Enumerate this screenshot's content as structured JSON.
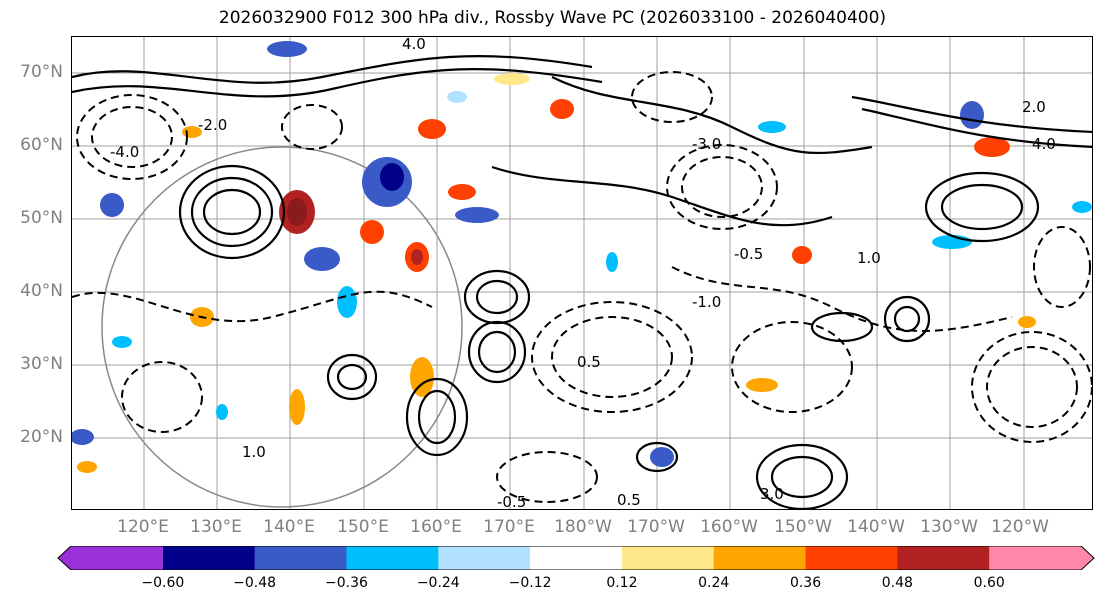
{
  "title": "2026032900 F012 300 hPa div., Rossby Wave PC (2026033100 - 2026040400)",
  "map": {
    "lat_labels": [
      "70°N",
      "60°N",
      "50°N",
      "40°N",
      "30°N",
      "20°N"
    ],
    "lon_labels": [
      "120°E",
      "130°E",
      "140°E",
      "150°E",
      "160°E",
      "170°E",
      "180°W",
      "170°W",
      "160°W",
      "150°W",
      "140°W",
      "130°W",
      "120°W"
    ],
    "contour_labels": [
      "-0.5",
      "0.5",
      "1.0",
      "-1.0",
      "2.0",
      "-2.0",
      "3.0",
      "-3.0",
      "4.0",
      "-4.0"
    ]
  },
  "colorbar": {
    "ticks": [
      "−0.60",
      "−0.48",
      "−0.36",
      "−0.24",
      "−0.12",
      "0.12",
      "0.24",
      "0.36",
      "0.48",
      "0.60"
    ],
    "colors": [
      "#9b30d9",
      "#00008b",
      "#3a5bc7",
      "#00bfff",
      "#b0e2ff",
      "#ffffff",
      "#ffe88a",
      "#ffa500",
      "#ff4000",
      "#b22222",
      "#ff88aa"
    ]
  }
}
